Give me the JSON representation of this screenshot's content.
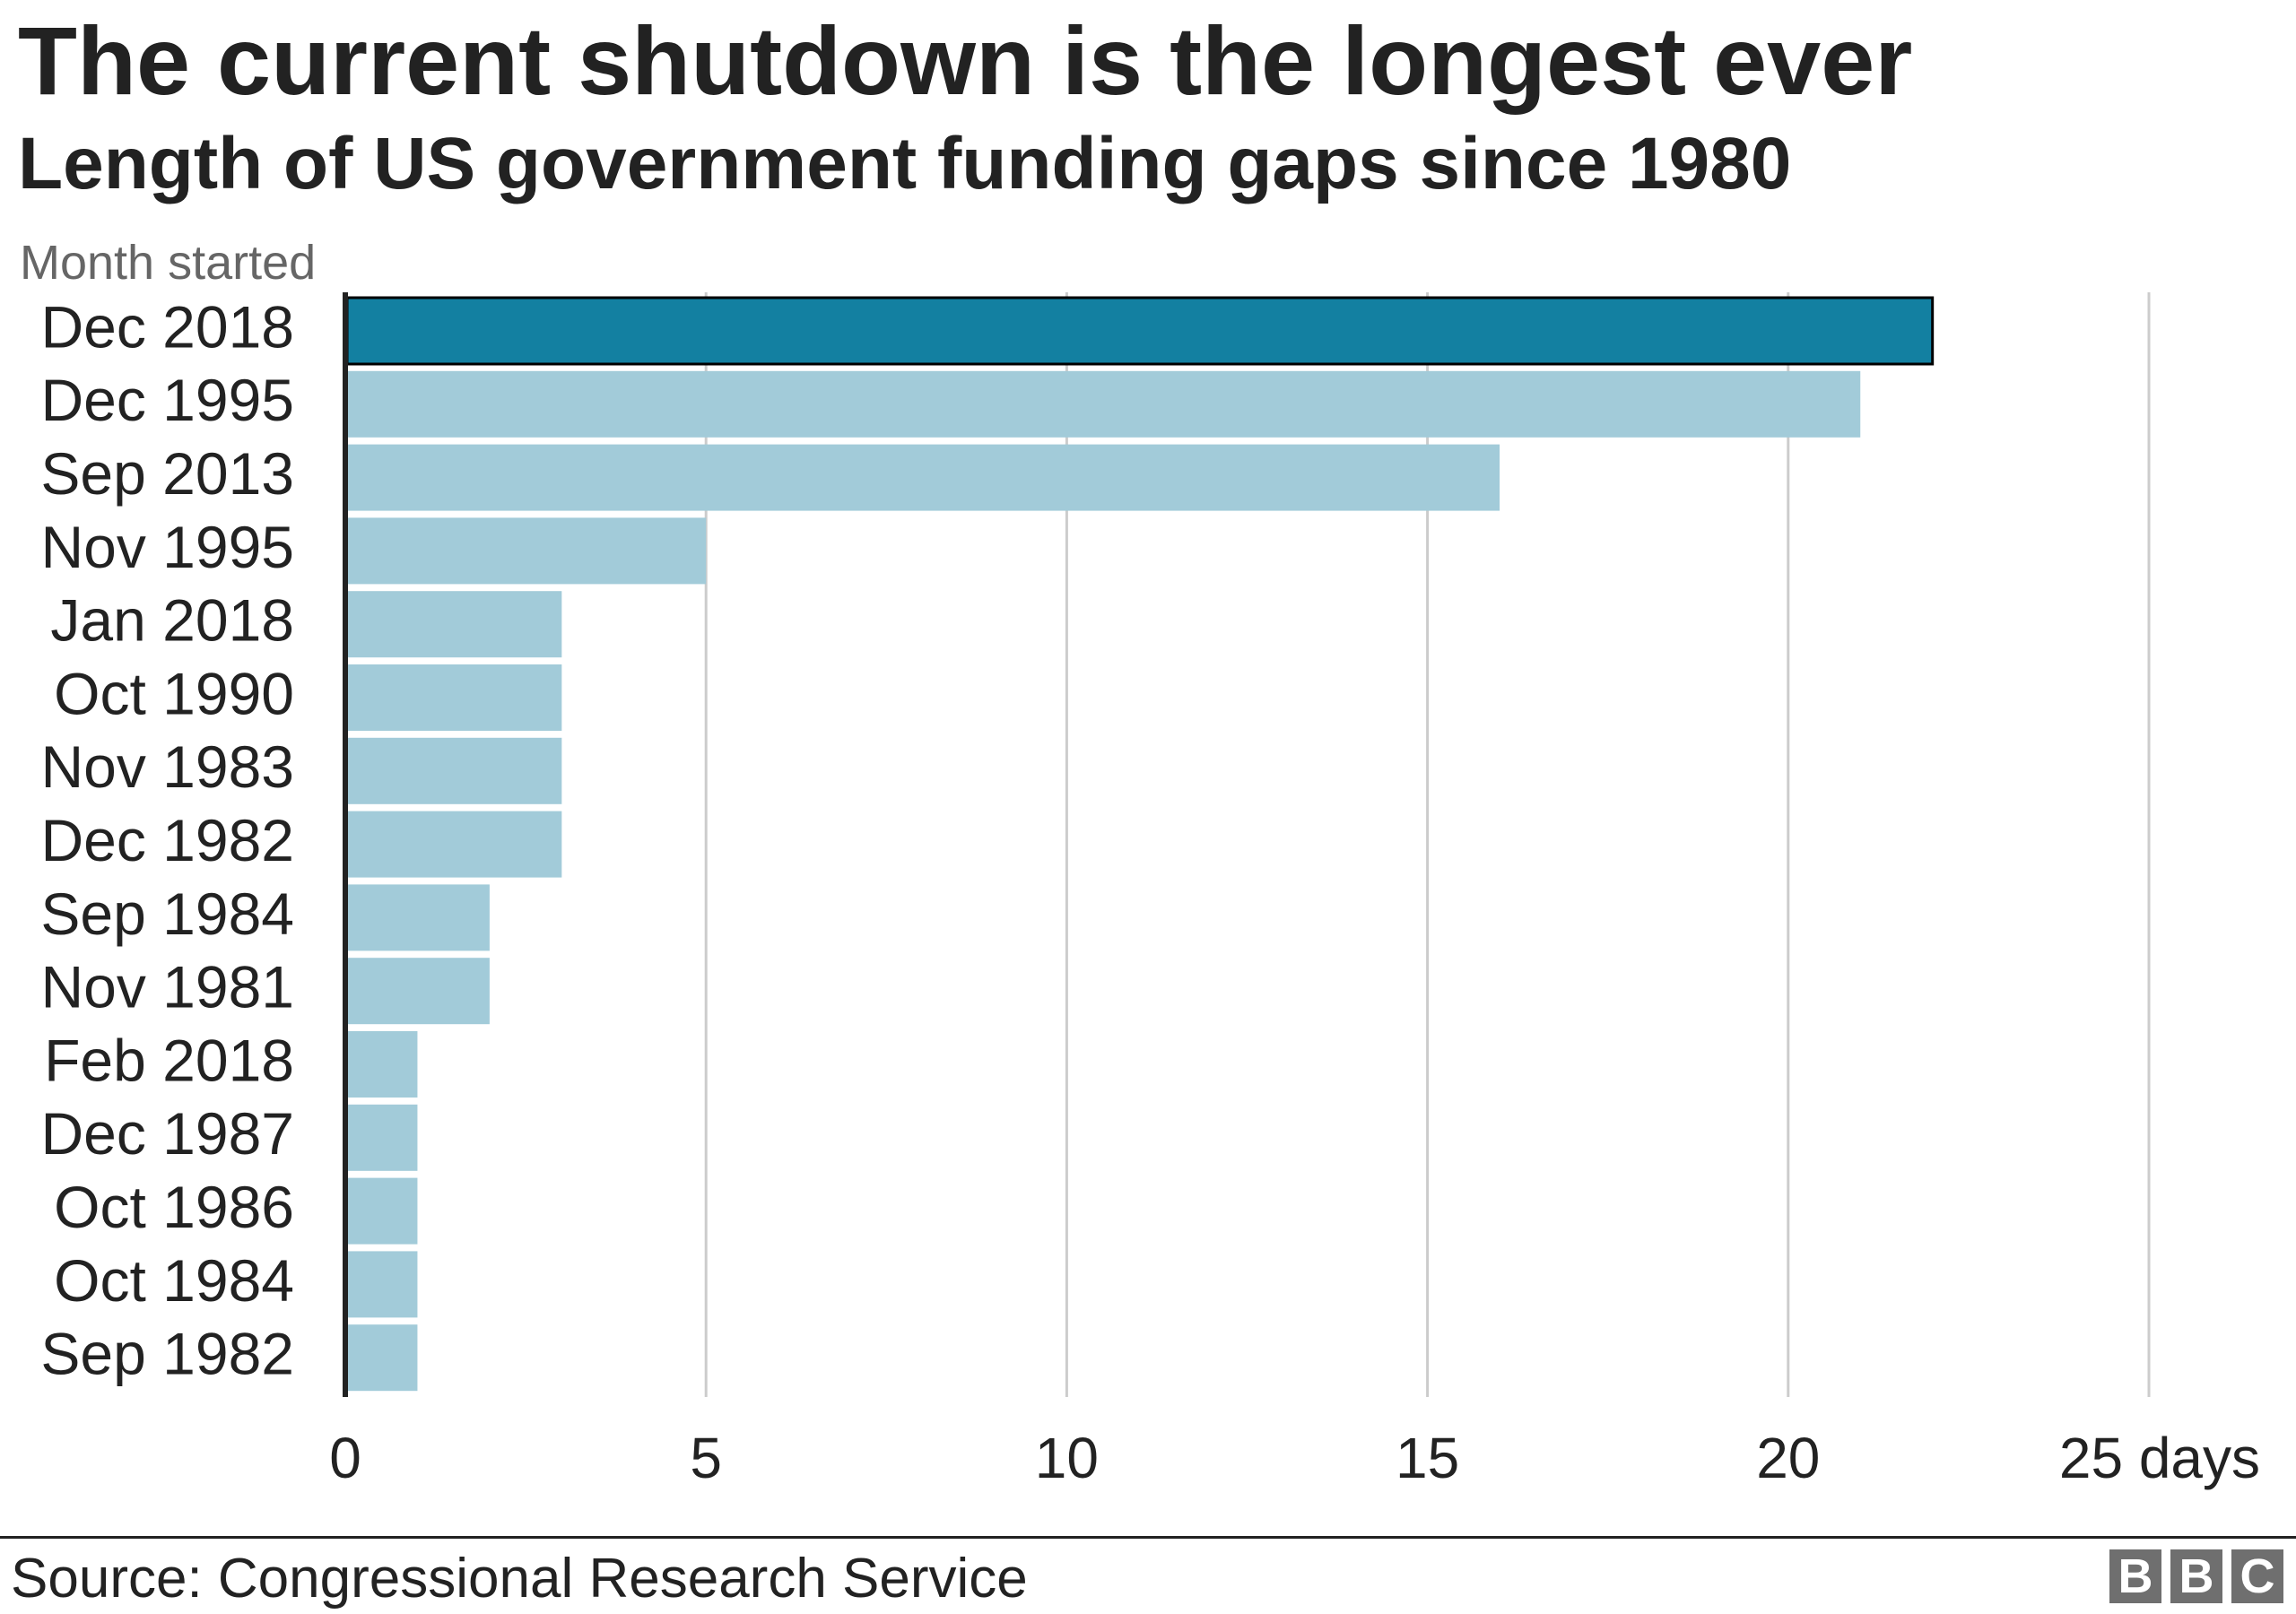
{
  "chart_data": {
    "type": "bar",
    "orientation": "horizontal",
    "title": "The current shutdown is the longest ever",
    "subtitle": "Length of US government funding gaps since 1980",
    "ylabel": "Month started",
    "xlabel": "days",
    "categories": [
      "Dec 2018",
      "Dec 1995",
      "Sep 2013",
      "Nov 1995",
      "Jan 2018",
      "Oct 1990",
      "Nov 1983",
      "Dec 1982",
      "Sep 1984",
      "Nov 1981",
      "Feb 2018",
      "Dec 1987",
      "Oct 1986",
      "Oct 1984",
      "Sep 1982"
    ],
    "values": [
      22,
      21,
      16,
      5,
      3,
      3,
      3,
      3,
      2,
      2,
      1,
      1,
      1,
      1,
      1
    ],
    "highlight_index": 0,
    "xlim": [
      0,
      25
    ],
    "xticks": [
      0,
      5,
      10,
      15,
      20,
      25
    ],
    "xtick_labels": [
      "0",
      "5",
      "10",
      "15",
      "20",
      "25 days"
    ],
    "grid": true,
    "colors": {
      "highlight": "#1380a1",
      "highlight_border": "#000000",
      "bar": "#a2cbd9",
      "grid": "#cccccc",
      "axis": "#222222",
      "text": "#222222"
    }
  },
  "footer": {
    "source": "Source: Congressional Research Service",
    "logo_letters": [
      "B",
      "B",
      "C"
    ]
  }
}
